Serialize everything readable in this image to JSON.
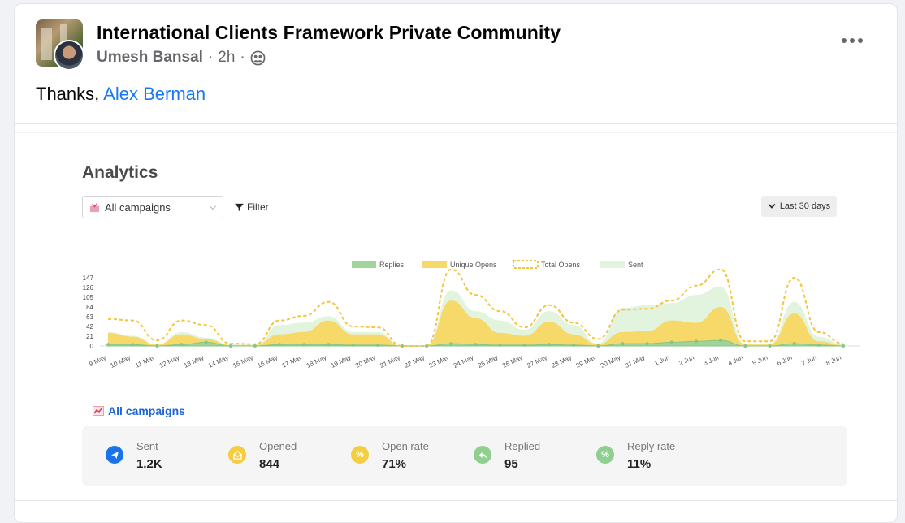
{
  "post": {
    "group_title": "International Clients Framework Private Community",
    "author": "Umesh Bansal",
    "time": "2h",
    "separator": "·",
    "text_prefix": "Thanks,",
    "mention": "Alex Berman"
  },
  "analytics": {
    "title": "Analytics",
    "dropdown_value": "All campaigns",
    "filter_label": "Filter",
    "range_label": "Last 30 days",
    "campaigns_link": "All campaigns"
  },
  "stats": [
    {
      "label": "Sent",
      "value": "1.2K",
      "color": "#1a73e8",
      "icon": "paper-plane-icon"
    },
    {
      "label": "Opened",
      "value": "844",
      "color": "#f6cd3f",
      "icon": "envelope-open-icon"
    },
    {
      "label": "Open rate",
      "value": "71%",
      "color": "#f6cd3f",
      "icon": "percent-icon"
    },
    {
      "label": "Replied",
      "value": "95",
      "color": "#8fcf8f",
      "icon": "reply-icon"
    },
    {
      "label": "Reply rate",
      "value": "11%",
      "color": "#8fcf8f",
      "icon": "percent-icon"
    }
  ],
  "chart_data": {
    "type": "area",
    "legend": [
      "Replies",
      "Unique Opens",
      "Total Opens",
      "Sent"
    ],
    "legend_position": "top",
    "categories": [
      "9 May",
      "10 May",
      "11 May",
      "12 May",
      "13 May",
      "14 May",
      "15 May",
      "16 May",
      "17 May",
      "18 May",
      "19 May",
      "20 May",
      "21 May",
      "22 May",
      "23 May",
      "24 May",
      "25 May",
      "26 May",
      "27 May",
      "28 May",
      "29 May",
      "30 May",
      "31 May",
      "1 Jun",
      "2 Jun",
      "3 Jun",
      "4 Jun",
      "5 Jun",
      "6 Jun",
      "7 Jun",
      "8 Jun"
    ],
    "yticks": [
      "0",
      "21",
      "42",
      "63",
      "84",
      "105",
      "126",
      "147"
    ],
    "ylim": [
      0,
      147
    ],
    "grid": false,
    "series": [
      {
        "name": "Sent",
        "color": "#e2f4dd",
        "values": [
          30,
          22,
          3,
          30,
          18,
          3,
          2,
          45,
          50,
          64,
          30,
          30,
          0,
          0,
          120,
          75,
          55,
          35,
          75,
          45,
          5,
          82,
          88,
          92,
          110,
          128,
          5,
          5,
          95,
          20,
          3
        ]
      },
      {
        "name": "Total Opens",
        "color": "#f4c53a",
        "values": [
          58,
          55,
          12,
          55,
          45,
          5,
          4,
          55,
          65,
          95,
          42,
          40,
          0,
          0,
          165,
          110,
          75,
          40,
          88,
          50,
          15,
          78,
          80,
          98,
          130,
          165,
          10,
          10,
          147,
          30,
          5
        ]
      },
      {
        "name": "Unique Opens",
        "color": "#f7d96a",
        "values": [
          28,
          20,
          3,
          25,
          15,
          2,
          2,
          25,
          30,
          55,
          25,
          25,
          0,
          0,
          98,
          60,
          28,
          22,
          52,
          25,
          4,
          30,
          32,
          55,
          50,
          84,
          3,
          3,
          70,
          10,
          2
        ]
      },
      {
        "name": "Replies",
        "color": "#9fd49a",
        "values": [
          3,
          3,
          0,
          3,
          8,
          0,
          0,
          3,
          3,
          3,
          2,
          2,
          0,
          0,
          5,
          3,
          2,
          2,
          3,
          2,
          0,
          5,
          5,
          8,
          10,
          12,
          0,
          0,
          5,
          2,
          0
        ]
      }
    ]
  }
}
